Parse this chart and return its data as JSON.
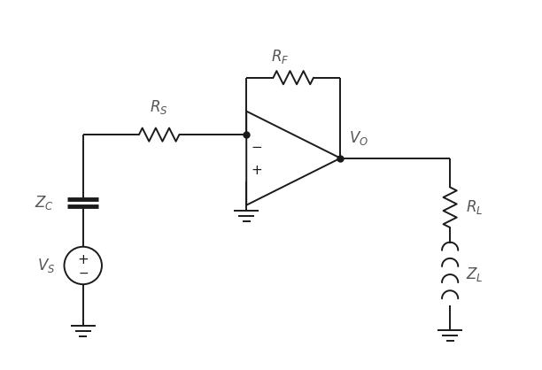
{
  "bg_color": "#ffffff",
  "line_color": "#1a1a1a",
  "line_width": 1.4,
  "fig_width": 6.12,
  "fig_height": 4.18,
  "dpi": 100,
  "xlim": [
    0,
    12
  ],
  "ylim": [
    0,
    8
  ],
  "labels": {
    "RS": "$R_S$",
    "RF": "$R_F$",
    "ZC": "$Z_C$",
    "VS": "$V_S$",
    "VO": "$V_O$",
    "RL": "$R_L$",
    "ZL": "$Z_L$"
  },
  "fontsize": 12,
  "dot_size": 5
}
